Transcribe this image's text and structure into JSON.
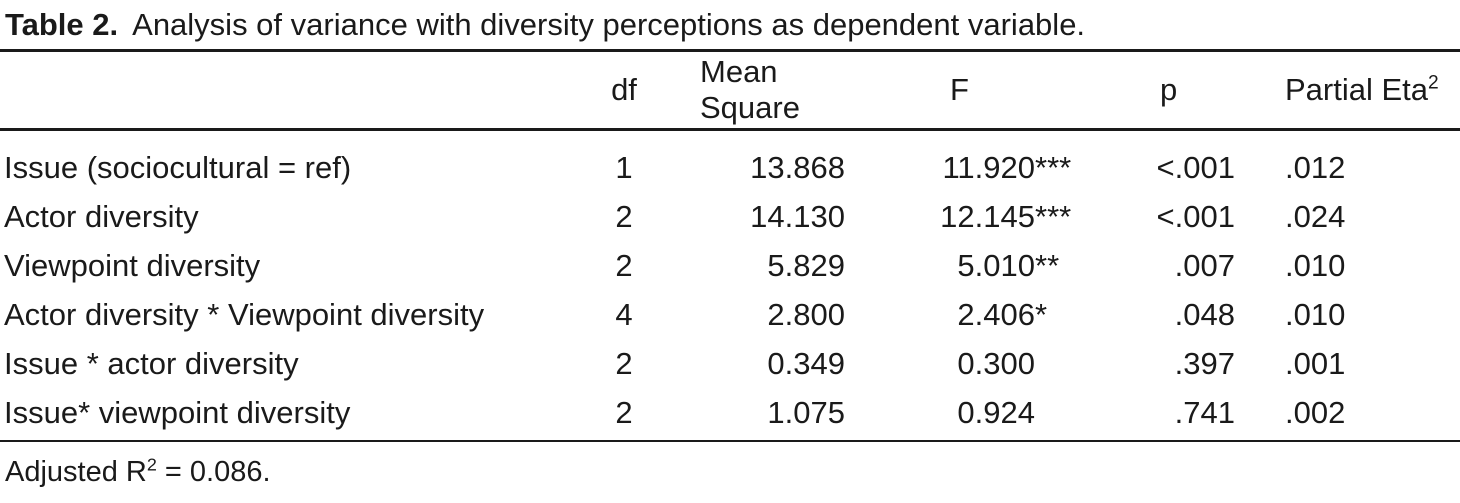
{
  "colors": {
    "background": "#ffffff",
    "text": "#1a1a1a",
    "rule": "#1a1a1a"
  },
  "caption": {
    "label": "Table 2.",
    "text": "Analysis of variance with diversity perceptions as dependent variable."
  },
  "table": {
    "headers": {
      "df": "df",
      "mean_square": "Mean Square",
      "f": "F",
      "p": "p",
      "partial_eta": "Partial Eta",
      "partial_eta_sup": "2"
    },
    "rows": [
      {
        "label": "Issue (sociocultural = ref)",
        "df": "1",
        "mean_square": "13.868",
        "f": "11.920",
        "f_stars": "***",
        "p": "<.001",
        "partial_eta2": ".012"
      },
      {
        "label": "Actor diversity",
        "df": "2",
        "mean_square": "14.130",
        "f": "12.145",
        "f_stars": "***",
        "p": "<.001",
        "partial_eta2": ".024"
      },
      {
        "label": "Viewpoint diversity",
        "df": "2",
        "mean_square": "5.829",
        "f": "5.010",
        "f_stars": "**",
        "p": ".007",
        "partial_eta2": ".010"
      },
      {
        "label": "Actor diversity * Viewpoint diversity",
        "df": "4",
        "mean_square": "2.800",
        "f": "2.406",
        "f_stars": "*",
        "p": ".048",
        "partial_eta2": ".010"
      },
      {
        "label": "Issue * actor diversity",
        "df": "2",
        "mean_square": "0.349",
        "f": "0.300",
        "f_stars": "",
        "p": ".397",
        "partial_eta2": ".001"
      },
      {
        "label": "Issue* viewpoint diversity",
        "df": "2",
        "mean_square": "1.075",
        "f": "0.924",
        "f_stars": "",
        "p": ".741",
        "partial_eta2": ".002"
      }
    ]
  },
  "footnote": {
    "prefix": "Adjusted R",
    "sup": "2",
    "suffix": " = 0.086."
  }
}
